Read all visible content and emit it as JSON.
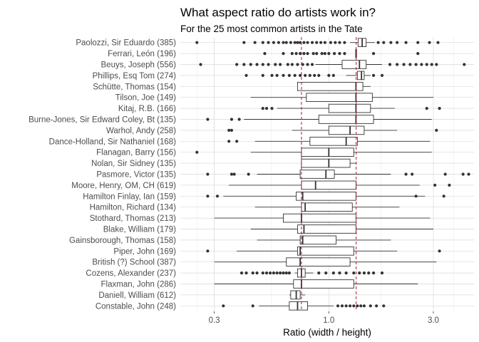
{
  "chart_data": {
    "type": "boxplot",
    "title": "What aspect ratio do artists work in?",
    "subtitle": "For the 25 most common artists in the Tate",
    "xlabel": "Ratio (width / height)",
    "ylabel": "",
    "x_scale": "log",
    "xlim": [
      0.21,
      4.6
    ],
    "x_ticks": [
      0.3,
      1.0,
      3.0
    ],
    "x_tick_labels": [
      "0.3",
      "1.0",
      "3.0"
    ],
    "grid": true,
    "reference_lines": [
      0.75,
      1.333
    ],
    "reference_line_color": "#b2182b",
    "categories": [
      "Paolozzi, Sir Eduardo (385)",
      "Ferrari, León (196)",
      "Beuys, Joseph (556)",
      "Phillips, Esq Tom (274)",
      "Schütte, Thomas (154)",
      "Tilson, Joe (149)",
      "Kitaj, R.B. (166)",
      "Burne-Jones, Sir Edward Coley, Bt (135)",
      "Warhol, Andy (258)",
      "Dance-Holland, Sir Nathaniel (168)",
      "Flanagan, Barry (156)",
      "Nolan, Sir Sidney (135)",
      "Pasmore, Victor (135)",
      "Moore, Henry, OM, CH (619)",
      "Hamilton Finlay, Ian (159)",
      "Hamilton, Richard (134)",
      "Stothard, Thomas (213)",
      "Blake, William (179)",
      "Gainsborough, Thomas (158)",
      "Piper, John (169)",
      "British (?) School (387)",
      "Cozens, Alexander (237)",
      "Flaxman, John (286)",
      "Daniell, William (612)",
      "Constable, John (248)"
    ],
    "boxes": [
      {
        "lower": 1.25,
        "q1": 1.36,
        "median": 1.42,
        "q3": 1.48,
        "upper": 1.62,
        "outliers": [
          0.25,
          0.41,
          0.46,
          0.5,
          0.53,
          0.56,
          0.59,
          0.62,
          0.64,
          0.67,
          0.7,
          0.72,
          0.74,
          0.77,
          0.8,
          0.84,
          0.88,
          0.92,
          0.96,
          1.02,
          1.07,
          1.12,
          1.18,
          1.68,
          1.78,
          1.92,
          2.05,
          2.25,
          2.55,
          2.88,
          3.15
        ]
      },
      {
        "lower": 1.33,
        "q1": 1.33,
        "median": 1.33,
        "q3": 1.33,
        "upper": 1.33,
        "outliers": [
          0.51,
          0.62,
          0.68,
          0.71,
          0.74,
          0.77,
          0.8,
          0.85,
          0.88,
          0.93,
          0.96,
          1.0,
          1.06,
          1.12,
          1.18,
          1.6,
          2.55
        ]
      },
      {
        "lower": 0.87,
        "q1": 1.15,
        "median": 1.38,
        "q3": 1.48,
        "upper": 1.75,
        "outliers": [
          0.26,
          0.38,
          0.41,
          0.44,
          0.47,
          0.5,
          0.53,
          0.57,
          0.6,
          0.65,
          0.68,
          0.72,
          0.76,
          0.8,
          0.84,
          1.9,
          2.05,
          2.2,
          2.35,
          2.5,
          2.65,
          2.8,
          2.95,
          3.1,
          4.15
        ]
      },
      {
        "lower": 1.2,
        "q1": 1.35,
        "median": 1.41,
        "q3": 1.45,
        "upper": 1.55,
        "outliers": [
          0.42,
          0.5,
          0.55,
          0.58,
          0.62,
          0.66,
          0.7,
          0.74,
          0.78,
          0.82,
          0.86,
          0.9,
          1.0,
          1.05,
          1.6,
          1.75
        ]
      },
      {
        "lower": 0.72,
        "q1": 0.72,
        "median": 1.33,
        "q3": 1.43,
        "upper": 1.55,
        "outliers": []
      },
      {
        "lower": 0.44,
        "q1": 0.79,
        "median": 1.33,
        "q3": 1.58,
        "upper": 3.0,
        "outliers": []
      },
      {
        "lower": 0.58,
        "q1": 1.0,
        "median": 1.33,
        "q3": 1.55,
        "upper": 2.0,
        "outliers": [
          0.5,
          0.52,
          0.55,
          2.8,
          3.2
        ]
      },
      {
        "lower": 0.41,
        "q1": 0.9,
        "median": 1.33,
        "q3": 1.6,
        "upper": 2.95,
        "outliers": [
          0.28,
          0.36,
          0.39
        ]
      },
      {
        "lower": 0.68,
        "q1": 1.0,
        "median": 1.25,
        "q3": 1.45,
        "upper": 2.05,
        "outliers": [
          0.35,
          0.36,
          3.1
        ]
      },
      {
        "lower": 0.46,
        "q1": 0.82,
        "median": 1.2,
        "q3": 1.35,
        "upper": 2.9,
        "outliers": [
          0.35,
          0.38
        ]
      },
      {
        "lower": 0.44,
        "q1": 0.75,
        "median": 1.0,
        "q3": 1.3,
        "upper": 2.95,
        "outliers": [
          0.25
        ]
      },
      {
        "lower": 0.75,
        "q1": 0.75,
        "median": 1.0,
        "q3": 1.25,
        "upper": 1.33,
        "outliers": []
      },
      {
        "lower": 0.47,
        "q1": 0.74,
        "median": 0.97,
        "q3": 1.06,
        "upper": 1.92,
        "outliers": [
          0.28,
          0.36,
          0.37,
          0.43,
          2.25,
          2.4,
          3.4,
          4.1,
          4.35
        ]
      },
      {
        "lower": 0.35,
        "q1": 0.75,
        "median": 0.87,
        "q3": 1.33,
        "upper": 2.6,
        "outliers": [
          3.05,
          3.55
        ]
      },
      {
        "lower": 0.33,
        "q1": 0.71,
        "median": 0.76,
        "q3": 1.33,
        "upper": 2.75,
        "outliers": [
          0.28,
          0.31,
          2.5,
          3.35
        ]
      },
      {
        "lower": 0.46,
        "q1": 0.75,
        "median": 0.78,
        "q3": 1.28,
        "upper": 2.1,
        "outliers": []
      },
      {
        "lower": 0.3,
        "q1": 0.62,
        "median": 0.75,
        "q3": 1.33,
        "upper": 2.9,
        "outliers": []
      },
      {
        "lower": 0.44,
        "q1": 0.72,
        "median": 0.77,
        "q3": 1.33,
        "upper": 3.0,
        "outliers": []
      },
      {
        "lower": 0.47,
        "q1": 0.74,
        "median": 0.76,
        "q3": 1.08,
        "upper": 1.92,
        "outliers": []
      },
      {
        "lower": 0.38,
        "q1": 0.72,
        "median": 0.74,
        "q3": 1.3,
        "upper": 2.05,
        "outliers": [
          0.28,
          3.2
        ]
      },
      {
        "lower": 0.3,
        "q1": 0.64,
        "median": 0.74,
        "q3": 1.25,
        "upper": 3.1,
        "outliers": []
      },
      {
        "lower": 0.7,
        "q1": 0.72,
        "median": 0.75,
        "q3": 0.78,
        "upper": 0.85,
        "outliers": [
          0.4,
          0.42,
          0.45,
          0.47,
          0.5,
          0.52,
          0.54,
          0.56,
          0.58,
          0.6,
          0.62,
          0.64,
          0.66,
          0.9,
          0.97,
          1.05,
          1.12,
          1.2,
          1.3,
          1.38,
          1.45,
          1.52,
          1.6,
          1.75
        ]
      },
      {
        "lower": 0.3,
        "q1": 0.69,
        "median": 0.75,
        "q3": 1.3,
        "upper": 2.55,
        "outliers": []
      },
      {
        "lower": 0.66,
        "q1": 0.67,
        "median": 0.71,
        "q3": 0.74,
        "upper": 0.78,
        "outliers": []
      },
      {
        "lower": 0.48,
        "q1": 0.66,
        "median": 0.72,
        "q3": 0.8,
        "upper": 1.05,
        "outliers": [
          0.33,
          0.45,
          1.1,
          1.15,
          1.2,
          1.25,
          1.3,
          1.35,
          1.4,
          1.45,
          1.55,
          1.65,
          1.78
        ]
      }
    ]
  },
  "colors": {
    "box_stroke": "#333333",
    "box_fill": "#ffffff",
    "point": "#333333",
    "grid_major": "#d9d9d9",
    "grid_minor": "#ebebeb",
    "reference_line": "#b2182b"
  }
}
